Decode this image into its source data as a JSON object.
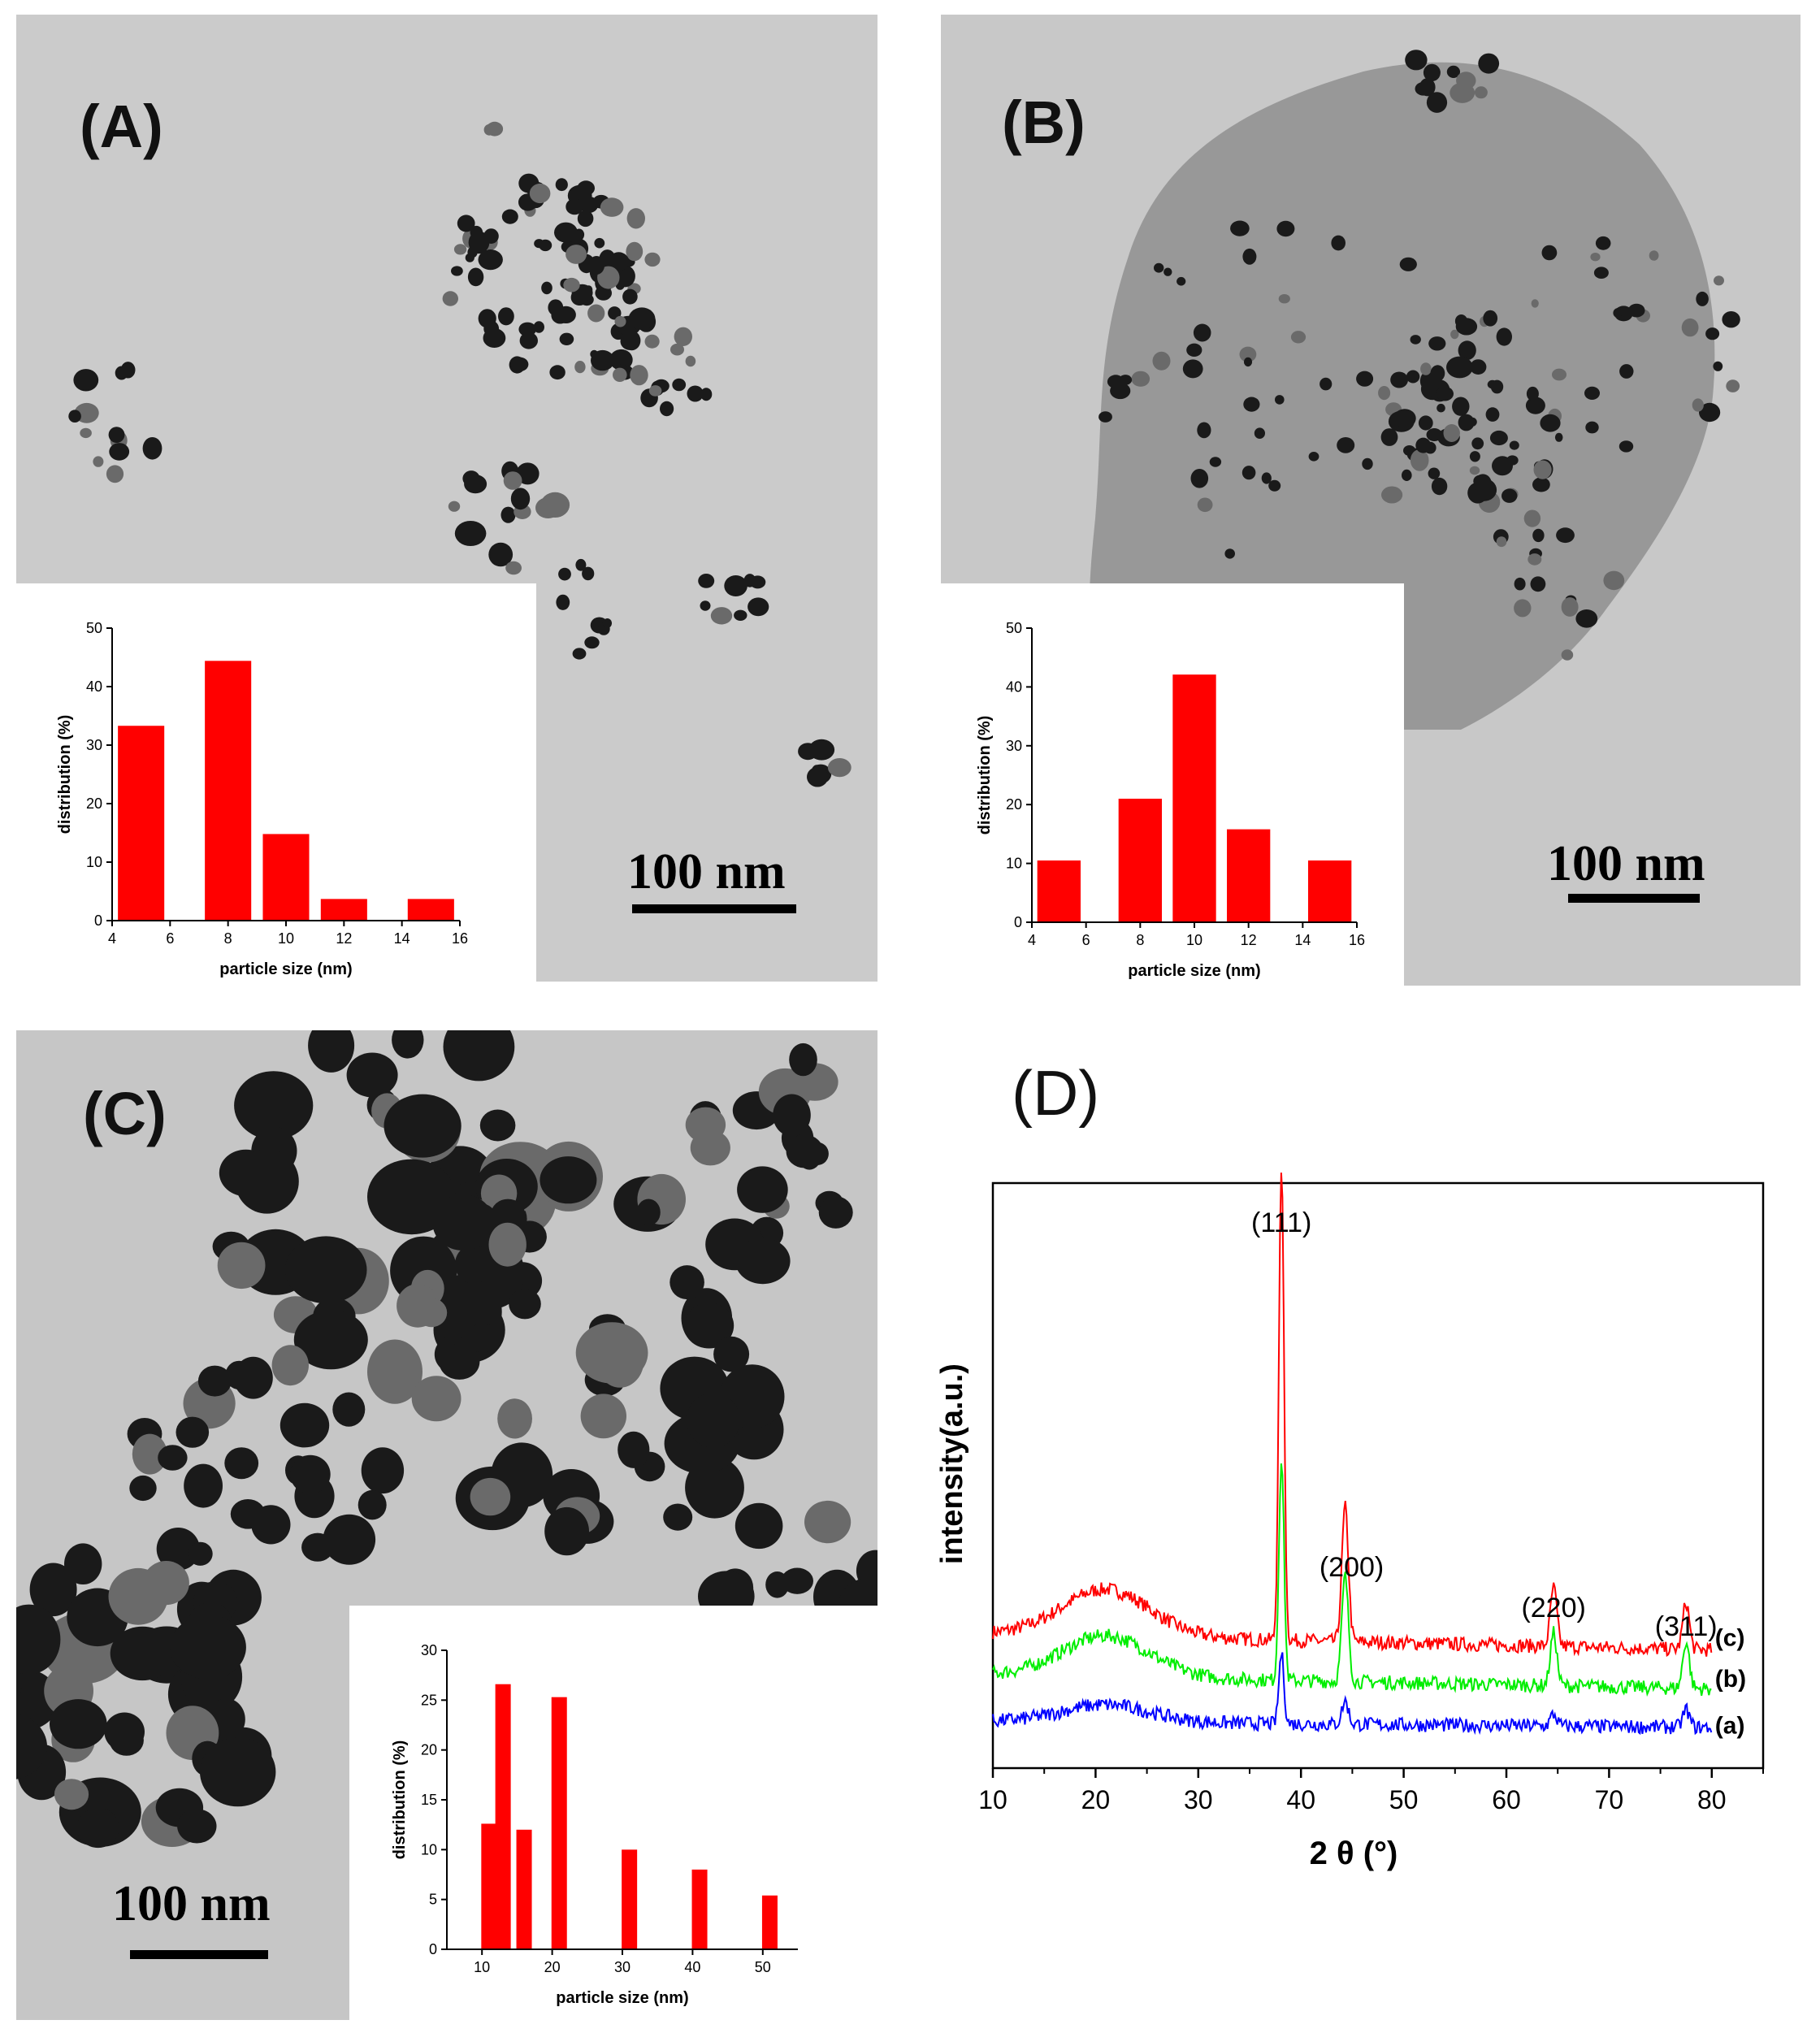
{
  "panels": {
    "a": {
      "label": "(A)",
      "scale_label": "100 nm"
    },
    "b": {
      "label": "(B)",
      "scale_label": "100 nm"
    },
    "c": {
      "label": "(C)",
      "scale_label": "100 nm"
    },
    "d": {
      "label": "(D)"
    }
  },
  "chart_data": [
    {
      "id": "inset-a",
      "type": "bar",
      "x": [
        5,
        8,
        10,
        12,
        15
      ],
      "values": [
        33.3,
        44.4,
        14.8,
        3.7,
        3.7
      ],
      "xlabel": "particle size (nm)",
      "ylabel": "distribution (%)",
      "xlim": [
        4,
        16
      ],
      "ylim": [
        0,
        50
      ],
      "xticks": [
        4,
        6,
        8,
        10,
        12,
        14,
        16
      ],
      "yticks": [
        0,
        10,
        20,
        30,
        40,
        50
      ],
      "color": "#ff0000"
    },
    {
      "id": "inset-b",
      "type": "bar",
      "x": [
        5,
        8,
        10,
        12,
        15
      ],
      "values": [
        10.5,
        21,
        42.1,
        15.8,
        10.5
      ],
      "xlabel": "particle size (nm)",
      "ylabel": "distribution (%)",
      "xlim": [
        4,
        16
      ],
      "ylim": [
        0,
        50
      ],
      "xticks": [
        4,
        6,
        8,
        10,
        12,
        14,
        16
      ],
      "yticks": [
        0,
        10,
        20,
        30,
        40,
        50
      ],
      "color": "#ff0000"
    },
    {
      "id": "inset-c",
      "type": "bar",
      "x": [
        11,
        13,
        16,
        21,
        31,
        41,
        51
      ],
      "values": [
        12.6,
        26.6,
        12,
        25.3,
        10,
        8,
        5.4
      ],
      "xlabel": "particle size (nm)",
      "ylabel": "distribution (%)",
      "xlim": [
        5,
        55
      ],
      "ylim": [
        0,
        30
      ],
      "xticks": [
        10,
        20,
        30,
        40,
        50
      ],
      "yticks": [
        0,
        5,
        10,
        15,
        20,
        25,
        30
      ],
      "color": "#ff0000"
    },
    {
      "id": "xrd",
      "type": "line",
      "xlabel": "2 θ (°)",
      "ylabel": "intensity(a.u.)",
      "xlim": [
        10,
        85
      ],
      "xticks": [
        10,
        20,
        30,
        40,
        50,
        60,
        70,
        80
      ],
      "ylim": [
        0,
        100
      ],
      "peaks": [
        {
          "label": "(111)",
          "x": 38.1
        },
        {
          "label": "(200)",
          "x": 44.3
        },
        {
          "label": "(220)",
          "x": 64.6
        },
        {
          "label": "(311)",
          "x": 77.5
        }
      ],
      "series": [
        {
          "name": "(c)",
          "color": "#ff0000",
          "baseline": 23,
          "peak_heights": [
            81,
            23,
            10,
            8
          ],
          "hump": 8
        },
        {
          "name": "(b)",
          "color": "#00ee00",
          "baseline": 16,
          "peak_heights": [
            38,
            18,
            9,
            8
          ],
          "hump": 7
        },
        {
          "name": "(a)",
          "color": "#0000ff",
          "baseline": 8,
          "peak_heights": [
            12,
            4,
            2,
            3
          ],
          "hump": 3
        }
      ]
    }
  ]
}
